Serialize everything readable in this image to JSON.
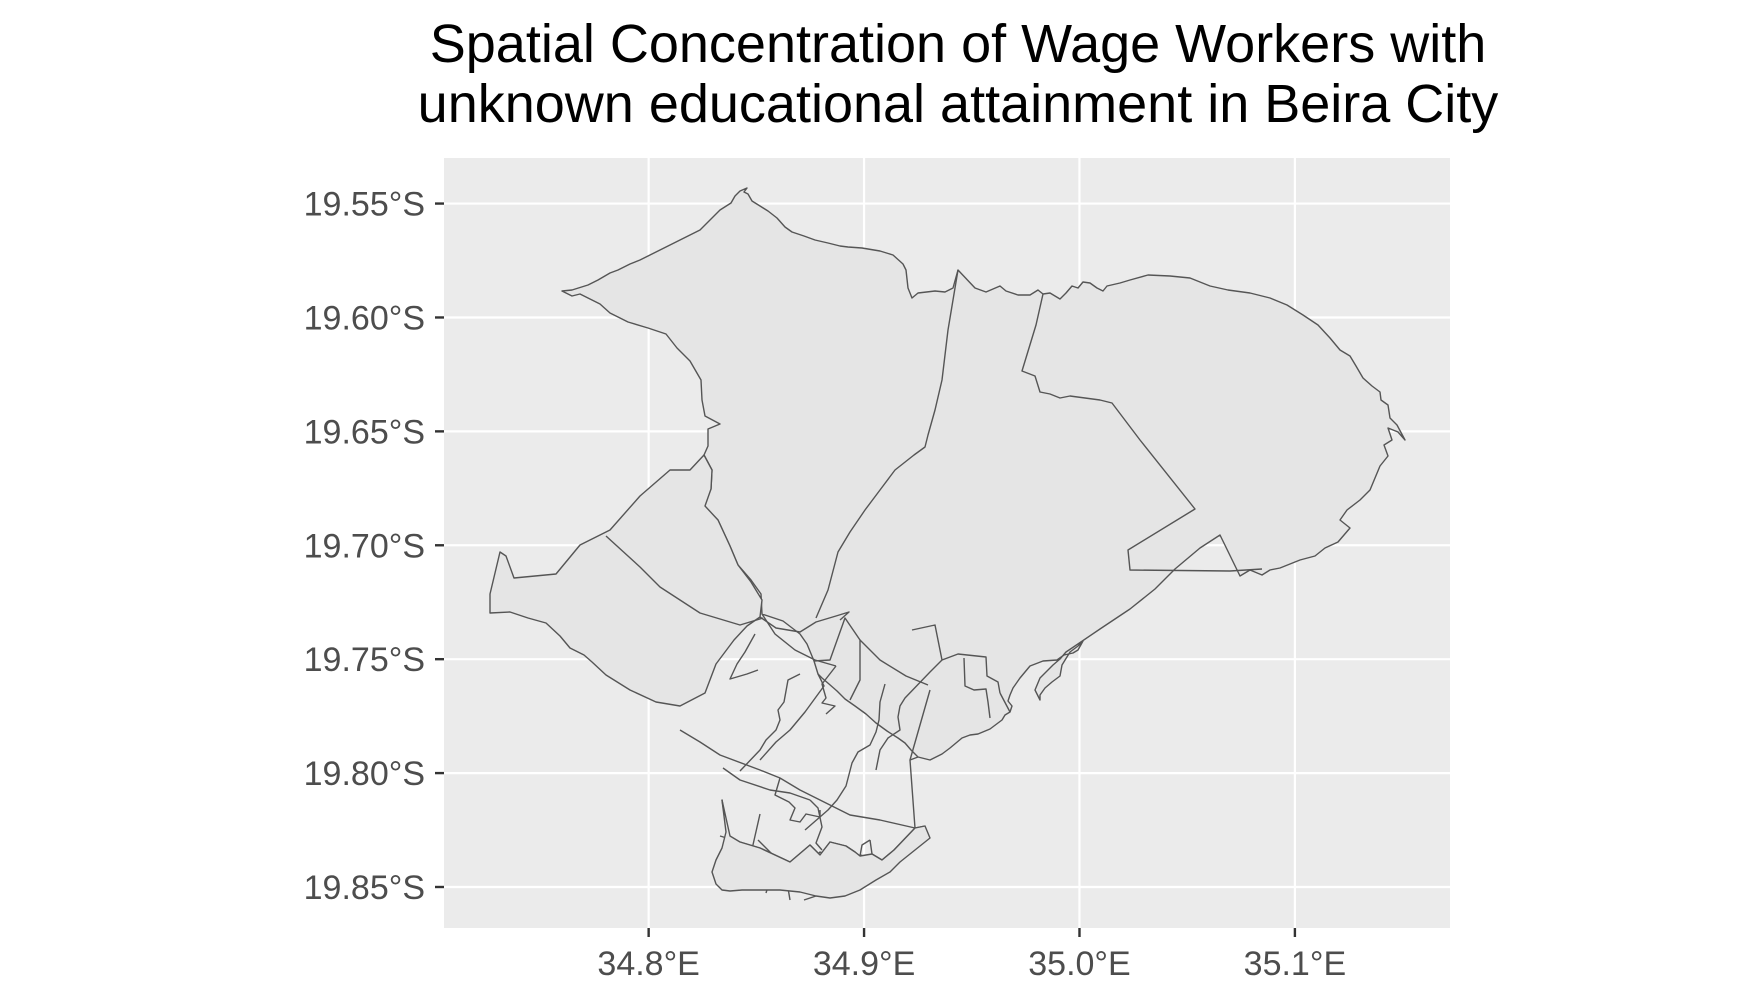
{
  "map": {
    "title_line1": "Spatial Concentration of Wage Workers with",
    "title_line2": "unknown educational attainment in Beira City",
    "x_ticks": [
      {
        "value": 34.8,
        "label": "34.8°E"
      },
      {
        "value": 34.9,
        "label": "34.9°E"
      },
      {
        "value": 35.0,
        "label": "35.0°E"
      },
      {
        "value": 35.1,
        "label": "35.1°E"
      }
    ],
    "y_ticks": [
      {
        "value": -19.55,
        "label": "19.55°S"
      },
      {
        "value": -19.6,
        "label": "19.60°S"
      },
      {
        "value": -19.65,
        "label": "19.65°S"
      },
      {
        "value": -19.7,
        "label": "19.70°S"
      },
      {
        "value": -19.75,
        "label": "19.75°S"
      },
      {
        "value": -19.8,
        "label": "19.80°S"
      },
      {
        "value": -19.85,
        "label": "19.85°S"
      }
    ],
    "x_range": [
      34.705,
      35.172
    ],
    "y_range": [
      -19.868,
      -19.53
    ],
    "colors": {
      "panel": "#ebebeb",
      "region_fill": "#e5e5e5",
      "region_stroke": "#555555",
      "grid": "#ffffff"
    }
  }
}
